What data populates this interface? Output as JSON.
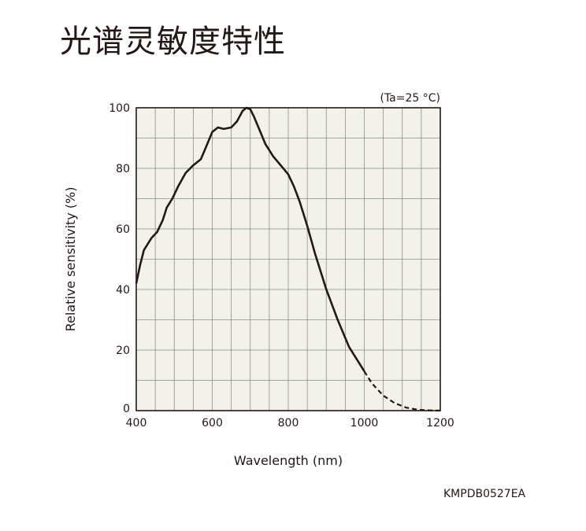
{
  "page": {
    "title": "光谱灵敏度特性",
    "code": "KMPDB0527EA"
  },
  "colors": {
    "plot_background": "#f3f2ea",
    "grid": "#8c8c8c",
    "curve": "#231815",
    "text": "#231815"
  },
  "chart_data": {
    "type": "line",
    "title": "",
    "annotation": "(Ta=25 °C)",
    "xlabel": "Wavelength (nm)",
    "ylabel": "Relative sensitivity (%)",
    "xlim": [
      400,
      1200
    ],
    "ylim": [
      0,
      100
    ],
    "xticks": [
      400,
      600,
      800,
      1000,
      1200
    ],
    "yticks": [
      0,
      20,
      40,
      60,
      80,
      100
    ],
    "grid": true,
    "series": [
      {
        "style": "solid",
        "x": [
          400,
          410,
          420,
          440,
          455,
          470,
          480,
          495,
          510,
          530,
          550,
          570,
          580,
          600,
          615,
          630,
          650,
          665,
          680,
          690,
          700,
          710,
          720,
          740,
          760,
          780,
          800,
          815,
          830,
          850,
          870,
          900,
          930,
          960,
          1000
        ],
        "y": [
          42,
          48,
          53,
          57,
          59,
          63,
          67,
          70,
          74,
          78.5,
          81,
          83,
          86,
          92,
          93.5,
          93,
          93.5,
          95.5,
          99,
          100,
          99.5,
          97,
          94,
          88,
          84,
          81,
          78,
          74,
          69,
          61,
          52,
          40,
          30,
          21,
          13
        ]
      },
      {
        "style": "dashed",
        "x": [
          1000,
          1020,
          1050,
          1080,
          1110,
          1140,
          1170,
          1200
        ],
        "y": [
          13,
          9,
          5,
          2.5,
          1,
          0.3,
          0.1,
          0
        ]
      }
    ]
  }
}
